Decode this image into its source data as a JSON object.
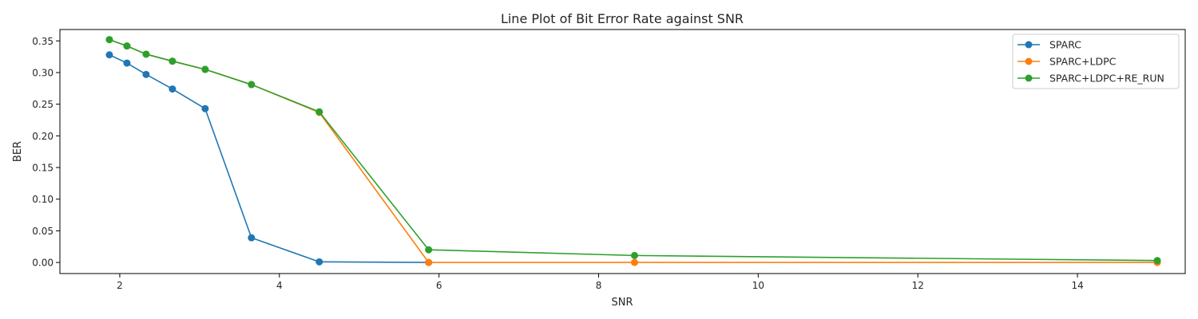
{
  "chart_data": {
    "type": "line",
    "title": "Line Plot of Bit Error Rate against SNR",
    "xlabel": "SNR",
    "ylabel": "BER",
    "xlim": [
      1.25,
      15.35
    ],
    "ylim": [
      -0.0175,
      0.368
    ],
    "xticks": [
      2,
      4,
      6,
      8,
      10,
      12,
      14
    ],
    "yticks": [
      0.0,
      0.05,
      0.1,
      0.15,
      0.2,
      0.25,
      0.3,
      0.35
    ],
    "grid": false,
    "legend_position": "top-right",
    "series": [
      {
        "name": "SPARC",
        "color": "#1f77b4",
        "x": [
          1.87,
          2.09,
          2.33,
          2.66,
          3.07,
          3.65,
          4.5,
          5.87
        ],
        "y": [
          0.328,
          0.315,
          0.297,
          0.274,
          0.243,
          0.039,
          0.001,
          0.0
        ]
      },
      {
        "name": "SPARC+LDPC",
        "color": "#ff7f0e",
        "x": [
          1.87,
          2.09,
          2.33,
          2.66,
          3.07,
          3.65,
          4.5,
          5.87,
          8.45,
          15.0
        ],
        "y": [
          0.352,
          0.342,
          0.329,
          0.318,
          0.305,
          0.281,
          0.237,
          0.0,
          0.0,
          0.0
        ]
      },
      {
        "name": "SPARC+LDPC+RE_RUN",
        "color": "#2ca02c",
        "x": [
          1.87,
          2.09,
          2.33,
          2.66,
          3.07,
          3.65,
          4.5,
          5.87,
          8.45,
          15.0
        ],
        "y": [
          0.352,
          0.342,
          0.329,
          0.318,
          0.305,
          0.281,
          0.238,
          0.02,
          0.011,
          0.003
        ]
      }
    ]
  }
}
